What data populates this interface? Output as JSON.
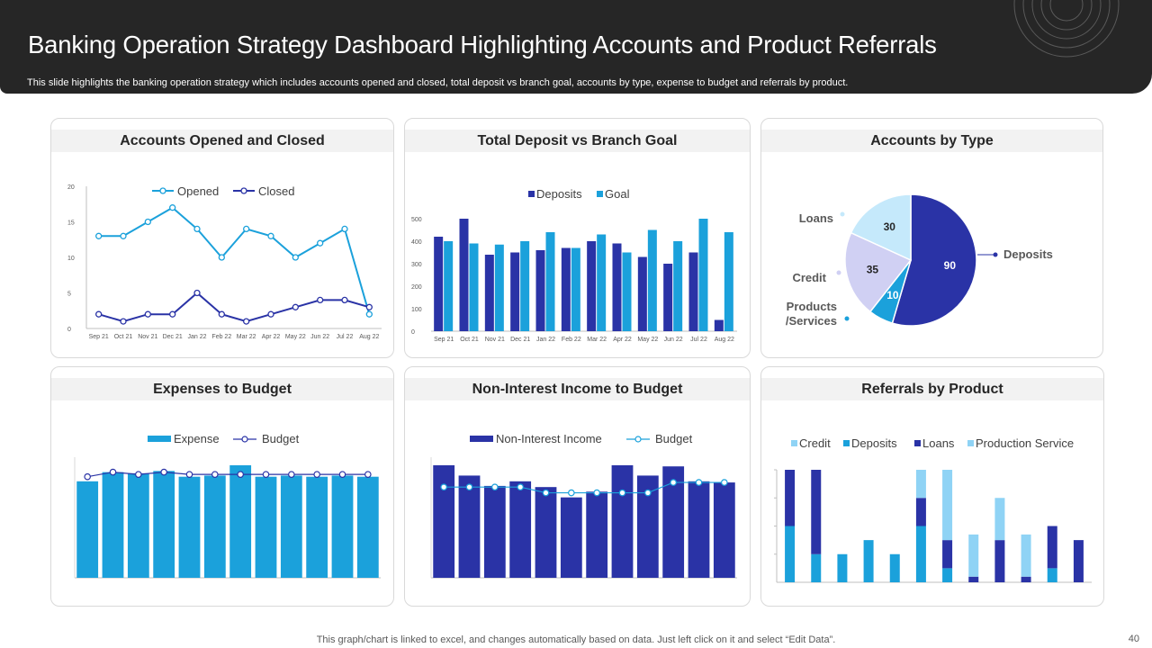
{
  "header": {
    "title": "Banking Operation Strategy Dashboard Highlighting Accounts and Product Referrals",
    "subtitle": "This slide highlights the banking operation strategy which includes accounts opened and closed, total deposit vs branch goal, accounts by type,  expense to budget and referrals by product."
  },
  "footer": {
    "note": "This graph/chart is linked to excel,  and changes automatically based on data. Just left click on it and select “Edit Data”.",
    "page": "40"
  },
  "colors": {
    "header_bg": "#262626",
    "light_blue": "#1ba1db",
    "navy": "#2a33a6",
    "sky": "#8fd3f5",
    "pale": "#c5e9fb",
    "lavender": "#d0d0f3"
  },
  "panels": {
    "p1": "Accounts Opened and Closed",
    "p2": "Total Deposit  vs Branch Goal",
    "p3": "Accounts by Type",
    "p4": "Expenses to Budget",
    "p5": "Non-Interest Income to Budget",
    "p6": "Referrals by Product"
  },
  "chart_data": [
    {
      "id": "accounts",
      "type": "line",
      "title": "Accounts Opened and Closed",
      "categories": [
        "Sep 21",
        "Oct 21",
        "Nov 21",
        "Dec 21",
        "Jan 22",
        "Feb 22",
        "Mar 22",
        "Apr 22",
        "May 22",
        "Jun 22",
        "Jul 22",
        "Aug 22"
      ],
      "series": [
        {
          "name": "Opened",
          "values": [
            13,
            13,
            15,
            17,
            14,
            10,
            14,
            13,
            10,
            12,
            14,
            2
          ]
        },
        {
          "name": "Closed",
          "values": [
            2,
            1,
            2,
            2,
            5,
            2,
            1,
            2,
            3,
            4,
            4,
            3
          ]
        }
      ],
      "ylim": [
        0,
        20
      ],
      "yticks": [
        0,
        5,
        10,
        15,
        20
      ]
    },
    {
      "id": "deposits",
      "type": "bar",
      "title": "Total Deposit  vs Branch Goal",
      "categories": [
        "Sep 21",
        "Oct 21",
        "Nov 21",
        "Dec 21",
        "Jan 22",
        "Feb 22",
        "Mar 22",
        "Apr 22",
        "May 22",
        "Jun 22",
        "Jul 22",
        "Aug 22"
      ],
      "series": [
        {
          "name": "Deposits",
          "values": [
            420,
            500,
            340,
            350,
            360,
            370,
            400,
            390,
            330,
            300,
            350,
            50
          ]
        },
        {
          "name": "Goal",
          "values": [
            400,
            390,
            385,
            400,
            440,
            370,
            430,
            350,
            450,
            400,
            500,
            440
          ]
        }
      ],
      "ylim": [
        0,
        500
      ],
      "yticks": [
        0,
        100,
        200,
        300,
        400,
        500
      ]
    },
    {
      "id": "account_types",
      "type": "pie",
      "title": "Accounts by Type",
      "slices": [
        {
          "label": "Deposits",
          "value": 90
        },
        {
          "label": "Products /Services",
          "value": 10
        },
        {
          "label": "Credit",
          "value": 35
        },
        {
          "label": "Loans",
          "value": 30
        }
      ]
    },
    {
      "id": "expenses",
      "type": "bar",
      "title": "Expenses to Budget",
      "series": [
        {
          "name": "Expense",
          "values": [
            84,
            92,
            91,
            93,
            88,
            89,
            98,
            88,
            89,
            88,
            89,
            88
          ]
        },
        {
          "name": "Budget",
          "values": [
            88,
            92,
            90,
            92,
            90,
            90,
            90,
            90,
            90,
            90,
            90,
            90
          ]
        }
      ],
      "ylim": [
        0,
        105
      ]
    },
    {
      "id": "non_interest",
      "type": "bar",
      "title": "Non-Interest Income to Budget",
      "series": [
        {
          "name": "Non-Interest Income",
          "values": [
            98,
            89,
            80,
            84,
            79,
            70,
            75,
            98,
            89,
            97,
            84,
            83
          ]
        },
        {
          "name": "Budget",
          "values": [
            79,
            79,
            79,
            79,
            74,
            74,
            74,
            74,
            74,
            83,
            83,
            83
          ]
        }
      ],
      "ylim": [
        0,
        105
      ]
    },
    {
      "id": "referrals",
      "type": "bar",
      "title": "Referrals by Product",
      "stacked": true,
      "series": [
        {
          "name": "Credit",
          "values": [
            0,
            0,
            0,
            0,
            0,
            0,
            0,
            0,
            0,
            0,
            0,
            0
          ]
        },
        {
          "name": "Deposits",
          "values": [
            2,
            1,
            1,
            1.5,
            1,
            2,
            0.5,
            0,
            0,
            0,
            0.5,
            0
          ]
        },
        {
          "name": "Loans",
          "values": [
            2,
            3,
            0,
            0,
            0,
            1,
            1,
            0.2,
            1.5,
            0.2,
            1.5,
            1.5
          ]
        },
        {
          "name": "Production Service",
          "values": [
            0,
            0,
            0,
            0,
            0,
            1,
            2.5,
            1.5,
            1.5,
            1.5,
            0,
            0
          ]
        }
      ],
      "ylim": [
        0,
        4
      ]
    }
  ]
}
